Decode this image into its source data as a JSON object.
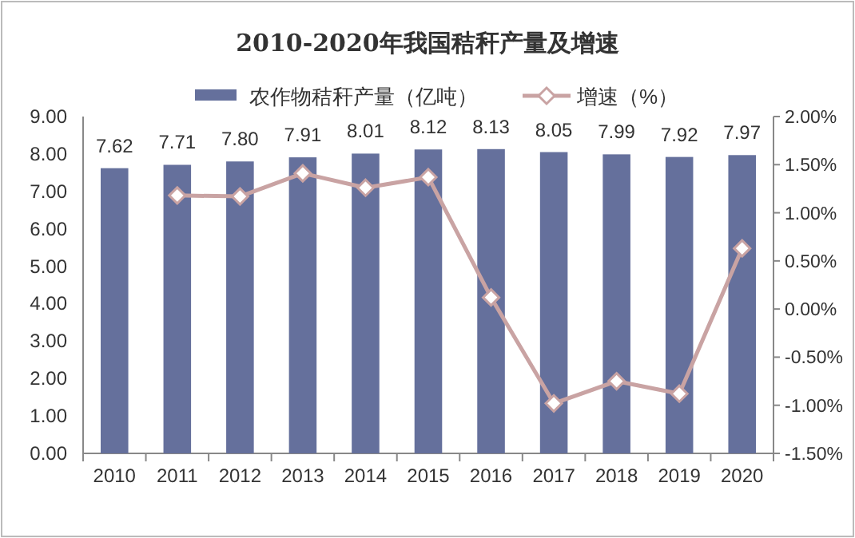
{
  "chart_data": {
    "type": "bar",
    "title": "2010-2020年我国秸秆产量及增速",
    "categories": [
      "2010",
      "2011",
      "2012",
      "2013",
      "2014",
      "2015",
      "2016",
      "2017",
      "2018",
      "2019",
      "2020"
    ],
    "series": [
      {
        "name": "农作物秸秆产量（亿吨）",
        "color": "#65709c",
        "values": [
          7.62,
          7.71,
          7.8,
          7.91,
          8.01,
          8.12,
          8.13,
          8.05,
          7.99,
          7.92,
          7.97
        ],
        "value_labels": [
          "7.62",
          "7.71",
          "7.80",
          "7.91",
          "8.01",
          "8.12",
          "8.13",
          "8.05",
          "7.99",
          "7.92",
          "7.97"
        ]
      },
      {
        "name": "增速（%）",
        "type": "line",
        "axis": "y2",
        "color": "#c9a3a3",
        "marker": "diamond",
        "values": [
          null,
          1.18,
          1.17,
          1.41,
          1.26,
          1.37,
          0.12,
          -0.98,
          -0.75,
          -0.88,
          0.63
        ]
      }
    ],
    "ylim": [
      0,
      9
    ],
    "yticks": [
      {
        "value": 0,
        "label": "0.00"
      },
      {
        "value": 1,
        "label": "1.00"
      },
      {
        "value": 2,
        "label": "2.00"
      },
      {
        "value": 3,
        "label": "3.00"
      },
      {
        "value": 4,
        "label": "4.00"
      },
      {
        "value": 5,
        "label": "5.00"
      },
      {
        "value": 6,
        "label": "6.00"
      },
      {
        "value": 7,
        "label": "7.00"
      },
      {
        "value": 8,
        "label": "8.00"
      },
      {
        "value": 9,
        "label": "9.00"
      }
    ],
    "y2lim": [
      -1.5,
      2
    ],
    "y2ticks": [
      {
        "value": -1.5,
        "label": "-1.50%"
      },
      {
        "value": -1,
        "label": "-1.00%"
      },
      {
        "value": -0.5,
        "label": "-0.50%"
      },
      {
        "value": 0,
        "label": "0.00%"
      },
      {
        "value": 0.5,
        "label": "0.50%"
      },
      {
        "value": 1,
        "label": "1.00%"
      },
      {
        "value": 1.5,
        "label": "1.50%"
      },
      {
        "value": 2,
        "label": "2.00%"
      }
    ],
    "legend": "top",
    "grid": false
  }
}
